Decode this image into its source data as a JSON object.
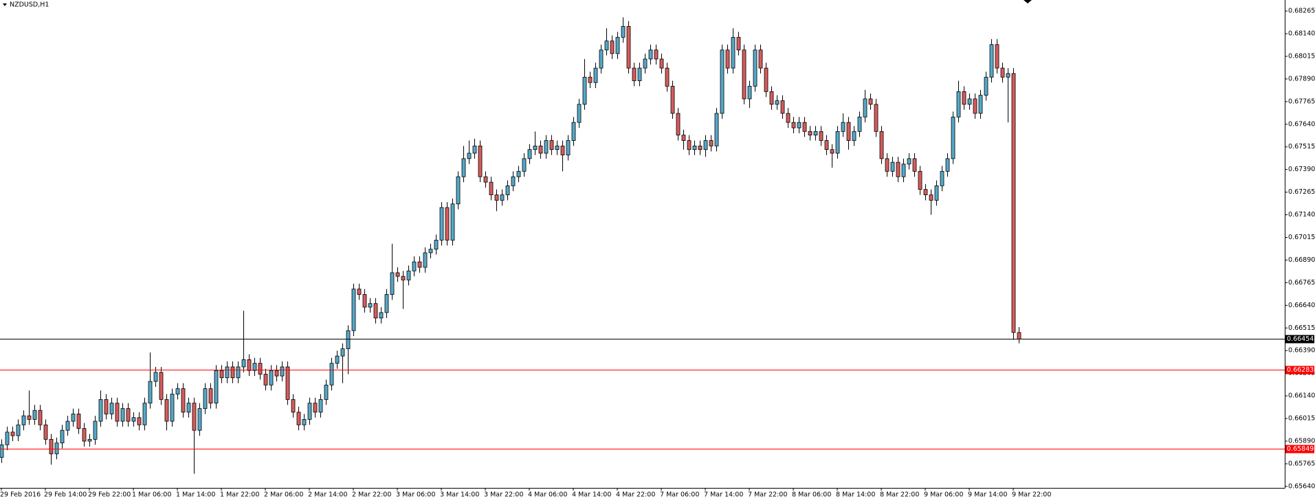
{
  "chart_data": {
    "type": "candlestick",
    "title": "NZDUSD,H1",
    "categories": [
      "29 Feb 2016",
      null,
      null,
      null,
      null,
      null,
      null,
      null,
      "29 Feb 14:00",
      null,
      null,
      null,
      null,
      null,
      null,
      null,
      "29 Feb 22:00",
      null,
      null,
      null,
      null,
      null,
      null,
      null,
      "1 Mar 06:00",
      null,
      null,
      null,
      null,
      null,
      null,
      null,
      "1 Mar 14:00",
      null,
      null,
      null,
      null,
      null,
      null,
      null,
      "1 Mar 22:00",
      null,
      null,
      null,
      null,
      null,
      null,
      null,
      "2 Mar 06:00",
      null,
      null,
      null,
      null,
      null,
      null,
      null,
      "2 Mar 14:00",
      null,
      null,
      null,
      null,
      null,
      null,
      null,
      "2 Mar 22:00",
      null,
      null,
      null,
      null,
      null,
      null,
      null,
      "3 Mar 06:00",
      null,
      null,
      null,
      null,
      null,
      null,
      null,
      "3 Mar 14:00",
      null,
      null,
      null,
      null,
      null,
      null,
      null,
      "3 Mar 22:00",
      null,
      null,
      null,
      null,
      null,
      null,
      null,
      "4 Mar 06:00",
      null,
      null,
      null,
      null,
      null,
      null,
      null,
      "4 Mar 14:00",
      null,
      null,
      null,
      null,
      null,
      null,
      null,
      "4 Mar 22:00",
      null,
      null,
      null,
      null,
      null,
      null,
      null,
      "7 Mar 06:00",
      null,
      null,
      null,
      null,
      null,
      null,
      null,
      "7 Mar 14:00",
      null,
      null,
      null,
      null,
      null,
      null,
      null,
      "7 Mar 22:00",
      null,
      null,
      null,
      null,
      null,
      null,
      null,
      "8 Mar 06:00",
      null,
      null,
      null,
      null,
      null,
      null,
      null,
      "8 Mar 14:00",
      null,
      null,
      null,
      null,
      null,
      null,
      null,
      "8 Mar 22:00",
      null,
      null,
      null,
      null,
      null,
      null,
      null,
      "9 Mar 06:00",
      null,
      null,
      null,
      null,
      null,
      null,
      null,
      "9 Mar 14:00",
      null,
      null,
      null,
      null,
      null,
      null,
      null,
      "9 Mar 22:00",
      null
    ],
    "open": [
      0.658,
      0.6587,
      0.6594,
      0.6592,
      0.6598,
      0.6603,
      0.6601,
      0.6606,
      0.6598,
      0.659,
      0.6582,
      0.6588,
      0.6595,
      0.66,
      0.6604,
      0.6596,
      0.6589,
      0.659,
      0.66,
      0.6612,
      0.6604,
      0.661,
      0.66,
      0.6607,
      0.66,
      0.6602,
      0.6598,
      0.661,
      0.6622,
      0.6627,
      0.6612,
      0.66,
      0.6615,
      0.6618,
      0.6605,
      0.661,
      0.6595,
      0.6607,
      0.6618,
      0.661,
      0.6628,
      0.6624,
      0.663,
      0.6624,
      0.663,
      0.6634,
      0.6628,
      0.6632,
      0.6626,
      0.662,
      0.6628,
      0.6625,
      0.663,
      0.6612,
      0.6605,
      0.6598,
      0.6601,
      0.661,
      0.6605,
      0.6612,
      0.662,
      0.6632,
      0.6636,
      0.664,
      0.665,
      0.6673,
      0.667,
      0.6663,
      0.6665,
      0.6657,
      0.666,
      0.667,
      0.6682,
      0.668,
      0.6678,
      0.6683,
      0.6688,
      0.6685,
      0.6693,
      0.6695,
      0.67,
      0.6718,
      0.67,
      0.672,
      0.6735,
      0.6745,
      0.6748,
      0.6752,
      0.6735,
      0.6732,
      0.6725,
      0.6722,
      0.6725,
      0.673,
      0.6735,
      0.6738,
      0.6745,
      0.675,
      0.6752,
      0.6748,
      0.6755,
      0.675,
      0.6752,
      0.6747,
      0.6755,
      0.6765,
      0.6775,
      0.679,
      0.6787,
      0.6795,
      0.6805,
      0.681,
      0.6803,
      0.6812,
      0.6818,
      0.6795,
      0.6788,
      0.6795,
      0.68,
      0.6805,
      0.68,
      0.6795,
      0.6785,
      0.677,
      0.6758,
      0.6755,
      0.675,
      0.6752,
      0.675,
      0.6755,
      0.6752,
      0.677,
      0.6805,
      0.6795,
      0.6812,
      0.6805,
      0.6778,
      0.6785,
      0.6805,
      0.6795,
      0.6782,
      0.6775,
      0.6777,
      0.677,
      0.6765,
      0.6762,
      0.6765,
      0.676,
      0.6758,
      0.676,
      0.6755,
      0.675,
      0.6748,
      0.676,
      0.6765,
      0.6755,
      0.676,
      0.6768,
      0.6778,
      0.6775,
      0.676,
      0.6745,
      0.6738,
      0.6743,
      0.6735,
      0.6742,
      0.6745,
      0.6738,
      0.6728,
      0.6725,
      0.6722,
      0.673,
      0.6738,
      0.6745,
      0.6768,
      0.6782,
      0.6775,
      0.6778,
      0.677,
      0.678,
      0.679,
      0.6808,
      0.6795,
      0.679,
      0.6792,
      0.6649
    ],
    "high": [
      0.659,
      0.6597,
      0.6597,
      0.6601,
      0.6606,
      0.6617,
      0.6609,
      0.6609,
      0.6601,
      0.6593,
      0.6591,
      0.6598,
      0.6603,
      0.6607,
      0.6607,
      0.6599,
      0.6593,
      0.6603,
      0.6617,
      0.6615,
      0.6613,
      0.6613,
      0.661,
      0.661,
      0.6605,
      0.6605,
      0.6613,
      0.6638,
      0.663,
      0.663,
      0.6615,
      0.6618,
      0.6621,
      0.6621,
      0.6613,
      0.6613,
      0.661,
      0.6621,
      0.6621,
      0.6631,
      0.6631,
      0.6633,
      0.6633,
      0.6633,
      0.6661,
      0.6637,
      0.6635,
      0.6635,
      0.6629,
      0.6631,
      0.6631,
      0.6633,
      0.6633,
      0.6615,
      0.6608,
      0.6604,
      0.6613,
      0.6613,
      0.6615,
      0.6623,
      0.6635,
      0.6639,
      0.6643,
      0.6653,
      0.6676,
      0.6676,
      0.6673,
      0.6668,
      0.6668,
      0.6663,
      0.6673,
      0.6698,
      0.6685,
      0.6683,
      0.6686,
      0.6691,
      0.6691,
      0.6696,
      0.6698,
      0.6703,
      0.6721,
      0.6721,
      0.6723,
      0.6738,
      0.6752,
      0.6755,
      0.6756,
      0.6755,
      0.6738,
      0.6735,
      0.6728,
      0.6728,
      0.6733,
      0.6738,
      0.6741,
      0.6748,
      0.6753,
      0.676,
      0.6755,
      0.6758,
      0.6758,
      0.6755,
      0.6755,
      0.6758,
      0.6768,
      0.6778,
      0.68,
      0.6793,
      0.6798,
      0.6808,
      0.6817,
      0.6813,
      0.6815,
      0.6823,
      0.6821,
      0.6798,
      0.6798,
      0.6803,
      0.6808,
      0.6808,
      0.6803,
      0.6798,
      0.6788,
      0.6773,
      0.6761,
      0.6758,
      0.6755,
      0.6755,
      0.6758,
      0.6758,
      0.6773,
      0.6808,
      0.6808,
      0.6817,
      0.6815,
      0.6808,
      0.6788,
      0.6808,
      0.6808,
      0.6798,
      0.6785,
      0.678,
      0.678,
      0.6773,
      0.6768,
      0.6768,
      0.6768,
      0.6763,
      0.6763,
      0.6763,
      0.6758,
      0.6753,
      0.6763,
      0.677,
      0.6768,
      0.6763,
      0.6771,
      0.6783,
      0.6781,
      0.6778,
      0.6763,
      0.6748,
      0.6746,
      0.6746,
      0.6745,
      0.6748,
      0.6748,
      0.6741,
      0.6731,
      0.6728,
      0.6733,
      0.6741,
      0.6748,
      0.6771,
      0.6788,
      0.6785,
      0.6781,
      0.6781,
      0.6783,
      0.6793,
      0.6811,
      0.6811,
      0.6798,
      0.6795,
      0.6795,
      0.6652
    ],
    "low": [
      0.6577,
      0.6584,
      0.6589,
      0.6589,
      0.6595,
      0.6598,
      0.6598,
      0.6595,
      0.6587,
      0.6576,
      0.6579,
      0.6585,
      0.6592,
      0.6597,
      0.6593,
      0.6586,
      0.6586,
      0.6587,
      0.6597,
      0.6601,
      0.6601,
      0.6597,
      0.6597,
      0.6597,
      0.6597,
      0.6595,
      0.6595,
      0.6607,
      0.6619,
      0.6609,
      0.6595,
      0.6597,
      0.6612,
      0.6602,
      0.6602,
      0.6571,
      0.6592,
      0.6604,
      0.6607,
      0.6607,
      0.6621,
      0.6621,
      0.6621,
      0.6621,
      0.6627,
      0.6625,
      0.6625,
      0.6623,
      0.6617,
      0.6617,
      0.6622,
      0.6622,
      0.6609,
      0.6602,
      0.6595,
      0.6595,
      0.6598,
      0.6602,
      0.6602,
      0.6609,
      0.6617,
      0.6629,
      0.6621,
      0.6626,
      0.6647,
      0.6667,
      0.666,
      0.666,
      0.6654,
      0.6654,
      0.6657,
      0.6667,
      0.6677,
      0.6662,
      0.6675,
      0.668,
      0.6682,
      0.6682,
      0.669,
      0.6692,
      0.6697,
      0.6697,
      0.6697,
      0.6717,
      0.6732,
      0.6742,
      0.6745,
      0.6732,
      0.6729,
      0.6722,
      0.6716,
      0.6719,
      0.6722,
      0.6727,
      0.6732,
      0.6735,
      0.6742,
      0.6747,
      0.6745,
      0.6745,
      0.6747,
      0.6747,
      0.6738,
      0.6744,
      0.6752,
      0.6762,
      0.6772,
      0.6784,
      0.6784,
      0.6792,
      0.6802,
      0.68,
      0.68,
      0.6809,
      0.6792,
      0.6785,
      0.6785,
      0.6792,
      0.6797,
      0.6797,
      0.6792,
      0.6782,
      0.6767,
      0.6755,
      0.675,
      0.6747,
      0.6747,
      0.6747,
      0.6746,
      0.6749,
      0.6749,
      0.6767,
      0.6792,
      0.6792,
      0.6802,
      0.6775,
      0.6773,
      0.6782,
      0.6792,
      0.6779,
      0.6772,
      0.6772,
      0.6767,
      0.6762,
      0.6759,
      0.6759,
      0.6757,
      0.6755,
      0.6755,
      0.6752,
      0.6747,
      0.674,
      0.6745,
      0.6757,
      0.675,
      0.6752,
      0.6757,
      0.6765,
      0.6772,
      0.6757,
      0.6742,
      0.6735,
      0.6735,
      0.6732,
      0.6732,
      0.6739,
      0.6735,
      0.6725,
      0.6722,
      0.6714,
      0.6719,
      0.6727,
      0.6735,
      0.6742,
      0.6765,
      0.6772,
      0.6772,
      0.6767,
      0.6767,
      0.6777,
      0.6787,
      0.6792,
      0.6787,
      0.6765,
      0.6645,
      0.6643
    ],
    "close": [
      0.6587,
      0.6594,
      0.6592,
      0.6598,
      0.6603,
      0.6601,
      0.6606,
      0.6598,
      0.659,
      0.6582,
      0.6588,
      0.6595,
      0.66,
      0.6604,
      0.6596,
      0.6589,
      0.659,
      0.66,
      0.6612,
      0.6604,
      0.661,
      0.66,
      0.6607,
      0.66,
      0.6602,
      0.6598,
      0.661,
      0.6622,
      0.6627,
      0.6612,
      0.66,
      0.6615,
      0.6618,
      0.6605,
      0.661,
      0.6595,
      0.6607,
      0.6618,
      0.661,
      0.6628,
      0.6624,
      0.663,
      0.6624,
      0.663,
      0.6634,
      0.6628,
      0.6632,
      0.6626,
      0.662,
      0.6628,
      0.6625,
      0.663,
      0.6612,
      0.6605,
      0.6598,
      0.6601,
      0.661,
      0.6605,
      0.6612,
      0.662,
      0.6632,
      0.6636,
      0.664,
      0.665,
      0.6673,
      0.667,
      0.6663,
      0.6665,
      0.6657,
      0.666,
      0.667,
      0.6682,
      0.668,
      0.6678,
      0.6683,
      0.6688,
      0.6685,
      0.6693,
      0.6695,
      0.67,
      0.6718,
      0.67,
      0.672,
      0.6735,
      0.6745,
      0.6748,
      0.6752,
      0.6735,
      0.6732,
      0.6725,
      0.6722,
      0.6725,
      0.673,
      0.6735,
      0.6738,
      0.6745,
      0.675,
      0.6752,
      0.6748,
      0.6755,
      0.675,
      0.6752,
      0.6747,
      0.6755,
      0.6765,
      0.6775,
      0.679,
      0.6787,
      0.6795,
      0.6805,
      0.681,
      0.6803,
      0.6812,
      0.6818,
      0.6795,
      0.6788,
      0.6795,
      0.68,
      0.6805,
      0.68,
      0.6795,
      0.6785,
      0.677,
      0.6758,
      0.6755,
      0.675,
      0.6752,
      0.675,
      0.6755,
      0.6752,
      0.677,
      0.6805,
      0.6795,
      0.6812,
      0.6805,
      0.6778,
      0.6785,
      0.6805,
      0.6795,
      0.6782,
      0.6775,
      0.6777,
      0.677,
      0.6765,
      0.6762,
      0.6765,
      0.676,
      0.6758,
      0.676,
      0.6755,
      0.675,
      0.6748,
      0.676,
      0.6765,
      0.6755,
      0.676,
      0.6768,
      0.6778,
      0.6775,
      0.676,
      0.6745,
      0.6738,
      0.6743,
      0.6735,
      0.6742,
      0.6745,
      0.6738,
      0.6728,
      0.6725,
      0.6722,
      0.673,
      0.6738,
      0.6745,
      0.6768,
      0.6782,
      0.6775,
      0.6778,
      0.677,
      0.678,
      0.679,
      0.6808,
      0.6795,
      0.679,
      0.6792,
      0.6649,
      0.66454
    ],
    "up_color": "#56a8c9",
    "down_color": "#d65c5c",
    "outline_color": "#000000",
    "ylim": [
      0.65632,
      0.68326
    ],
    "yticks": [
      0.68265,
      {
        "value": 0.6814,
        "label": "0.68140"
      },
      0.68015,
      {
        "value": 0.6789,
        "label": "0.67890"
      },
      0.67765,
      {
        "value": 0.6764,
        "label": "0.67640"
      },
      0.67515,
      {
        "value": 0.6739,
        "label": "0.67390"
      },
      0.67265,
      {
        "value": 0.6714,
        "label": "0.67140"
      },
      0.67015,
      {
        "value": 0.6689,
        "label": "0.66890"
      },
      0.66765,
      {
        "value": 0.6664,
        "label": "0.66640"
      },
      0.66515,
      {
        "value": 0.6639,
        "label": "0.66390"
      },
      0.66265,
      {
        "value": 0.6614,
        "label": "0.66140"
      },
      0.66015,
      {
        "value": 0.6589,
        "label": "0.65890"
      },
      0.65765,
      {
        "value": 0.6564,
        "label": "0.65640"
      }
    ],
    "price_lines": [
      {
        "value": 0.66454,
        "color": "#000000"
      },
      {
        "value": 0.66283,
        "color": "#ff0000"
      },
      {
        "value": 0.65849,
        "color": "#ff0000"
      }
    ]
  }
}
